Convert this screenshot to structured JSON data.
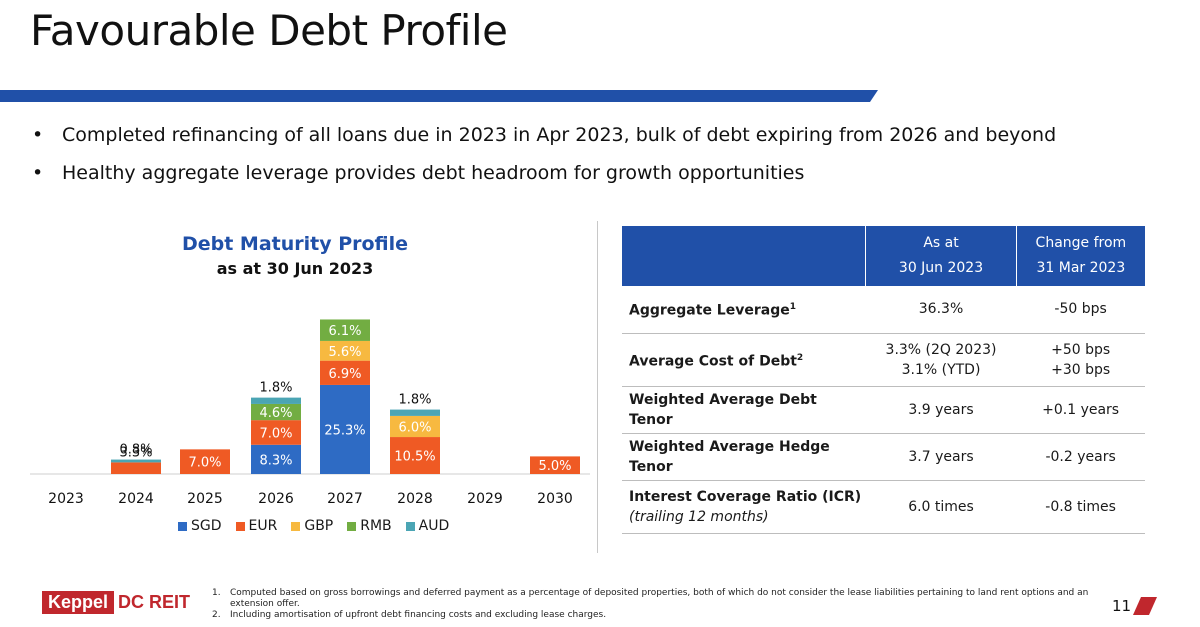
{
  "title": "Favourable Debt Profile",
  "bullets": [
    "Completed refinancing of all loans due in 2023 in Apr 2023, bulk of debt expiring from 2026 and beyond",
    "Healthy aggregate leverage provides debt headroom for growth opportunities"
  ],
  "colors": {
    "accent": "#2050a8",
    "brand_red": "#c0272d"
  },
  "chart_data": {
    "type": "bar",
    "stacked": true,
    "title": "Debt Maturity Profile",
    "subtitle": "as at 30 Jun 2023",
    "categories": [
      "2023",
      "2024",
      "2025",
      "2026",
      "2027",
      "2028",
      "2029",
      "2030"
    ],
    "series": [
      {
        "name": "SGD",
        "color": "#2e6bc4",
        "values": [
          0,
          0,
          0,
          8.3,
          25.3,
          0,
          0,
          0
        ]
      },
      {
        "name": "EUR",
        "color": "#ef5a24",
        "values": [
          0,
          3.3,
          7.0,
          7.0,
          6.9,
          10.5,
          0,
          5.0
        ]
      },
      {
        "name": "GBP",
        "color": "#f7b940",
        "values": [
          0,
          0,
          0,
          0,
          5.6,
          6.0,
          0,
          0
        ]
      },
      {
        "name": "RMB",
        "color": "#72ad42",
        "values": [
          0,
          0,
          0,
          4.6,
          6.1,
          0,
          0,
          0
        ]
      },
      {
        "name": "AUD",
        "color": "#4ba5b4",
        "values": [
          0,
          0.8,
          0,
          1.8,
          0,
          1.8,
          0,
          0
        ]
      }
    ],
    "legend": "bottom",
    "grid": false
  },
  "table": {
    "headers": [
      "",
      "As at\n30 Jun 2023",
      "Change from\n31 Mar 2023"
    ],
    "header_as_at": [
      "As at",
      "30 Jun 2023"
    ],
    "header_change": [
      "Change from",
      "31 Mar 2023"
    ],
    "rows": [
      {
        "metric": "Aggregate Leverage",
        "sup": "1",
        "value": "36.3%",
        "change": "-50 bps"
      },
      {
        "metric": "Average Cost of Debt",
        "sup": "2",
        "value": "3.3% (2Q 2023)",
        "value2": "3.1% (YTD)",
        "change": "+50 bps",
        "change2": "+30 bps"
      },
      {
        "metric": "Weighted Average Debt Tenor",
        "value": "3.9 years",
        "change": "+0.1 years"
      },
      {
        "metric": "Weighted Average Hedge Tenor",
        "value": "3.7 years",
        "change": "-0.2 years"
      },
      {
        "metric": "Interest Coverage Ratio (ICR)",
        "metric_sub": "(trailing 12 months)",
        "value": "6.0 times",
        "change": "-0.8 times"
      }
    ]
  },
  "footnotes": [
    {
      "num": "1.",
      "text": "Computed based on gross borrowings and deferred payment as a percentage of deposited properties, both of which do not consider the lease liabilities pertaining to land rent options and an extension offer."
    },
    {
      "num": "2.",
      "text": "Including amortisation of upfront debt financing costs and excluding lease charges."
    }
  ],
  "logo": {
    "part1": "Keppel",
    "part2": "DC REIT"
  },
  "page_number": "11"
}
